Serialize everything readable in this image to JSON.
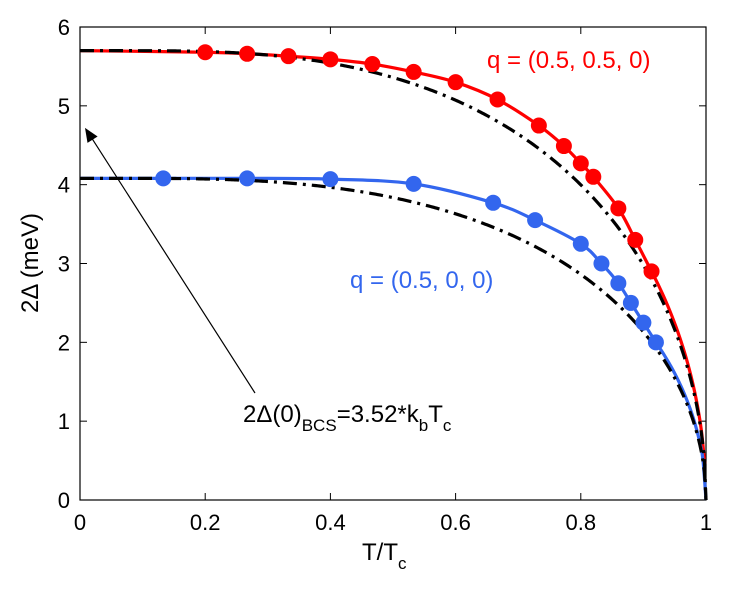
{
  "chart_data": {
    "type": "line",
    "xlabel": "T/T",
    "xlabel_sub": "c",
    "ylabel": "2Δ (meV)",
    "xlim": [
      0,
      1
    ],
    "ylim": [
      0,
      6
    ],
    "xticks": [
      0,
      0.2,
      0.4,
      0.6,
      0.8,
      1
    ],
    "xtick_labels": [
      "0",
      "0.2",
      "0.4",
      "0.6",
      "0.8",
      "1"
    ],
    "yticks": [
      0,
      1,
      2,
      3,
      4,
      5,
      6
    ],
    "ytick_labels": [
      "0",
      "1",
      "2",
      "3",
      "4",
      "5",
      "6"
    ],
    "grid": false,
    "series": [
      {
        "name": "q = (0.5, 0.5, 0)",
        "color": "#ff0000",
        "gap0": 5.7,
        "bcs_gap0": 5.7,
        "points_x": [
          0.2,
          0.267,
          0.333,
          0.4,
          0.467,
          0.533,
          0.6,
          0.667,
          0.733,
          0.773,
          0.8,
          0.82,
          0.86,
          0.887,
          0.913
        ],
        "points_y": [
          5.68,
          5.66,
          5.63,
          5.59,
          5.53,
          5.43,
          5.3,
          5.08,
          4.75,
          4.49,
          4.27,
          4.1,
          3.7,
          3.3,
          2.9
        ]
      },
      {
        "name": "q = (0.5, 0, 0)",
        "color": "#3366ee",
        "gap0": 4.08,
        "bcs_gap0": 4.08,
        "points_x": [
          0.133,
          0.267,
          0.4,
          0.533,
          0.66,
          0.727,
          0.8,
          0.833,
          0.86,
          0.88,
          0.9,
          0.92
        ],
        "points_y": [
          4.08,
          4.08,
          4.07,
          4.01,
          3.77,
          3.55,
          3.25,
          3.0,
          2.75,
          2.5,
          2.25,
          2.0
        ]
      }
    ],
    "annotations": {
      "red_label": "q = (0.5, 0.5, 0)",
      "blue_label": "q = (0.5, 0, 0)",
      "bcs_prefix": "2Δ(0)",
      "bcs_sub": "BCS",
      "bcs_mid": "=3.52*k",
      "bcs_sub2": "b",
      "bcs_T": "T",
      "bcs_sub3": "c",
      "arrow_target": [
        0.0,
        4.72
      ]
    }
  }
}
